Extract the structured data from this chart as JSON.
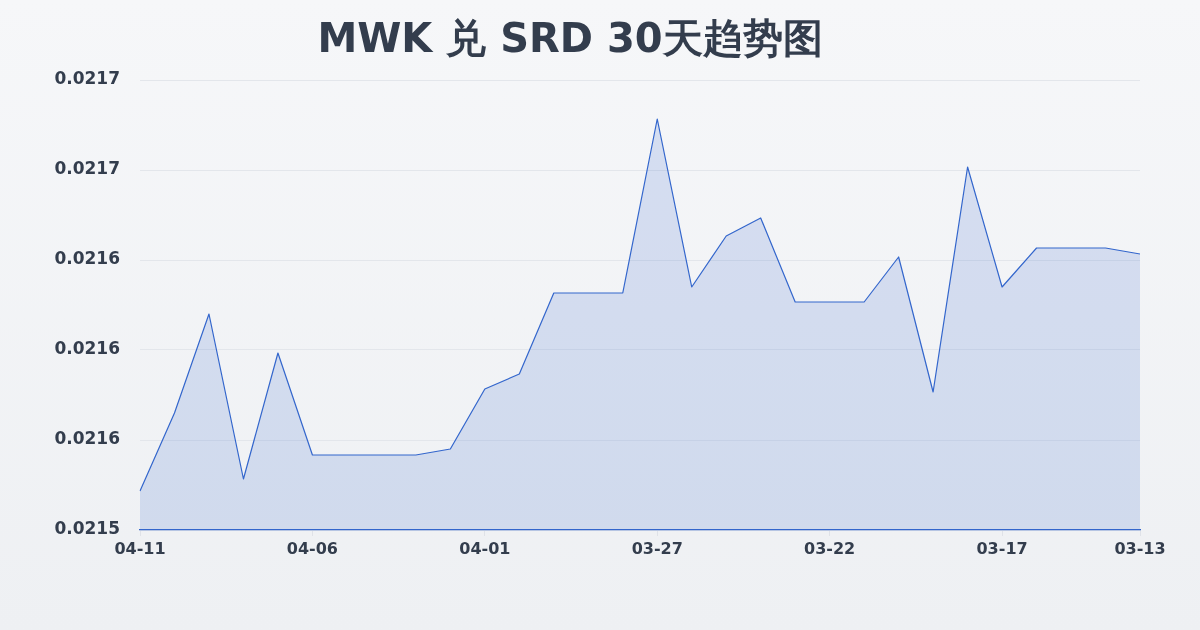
{
  "chart_data": {
    "type": "area",
    "title": "MWK 兑 SRD 30天趋势图",
    "categories": [
      "04-11",
      null,
      null,
      null,
      null,
      "04-06",
      null,
      null,
      null,
      null,
      "04-01",
      null,
      null,
      null,
      null,
      "03-27",
      null,
      null,
      null,
      null,
      "03-22",
      null,
      null,
      null,
      null,
      "03-17",
      null,
      null,
      null,
      "03-13"
    ],
    "values": [
      0.021553,
      0.021579,
      0.021612,
      0.021557,
      0.021599,
      0.021565,
      0.021565,
      0.021565,
      0.021565,
      0.021567,
      0.021587,
      0.021592,
      0.021619,
      0.021619,
      0.021619,
      0.021677,
      0.021621,
      0.021638,
      0.021644,
      0.021616,
      0.021616,
      0.021616,
      0.021631,
      0.021586,
      0.021661,
      0.021621,
      0.021634,
      0.021634,
      0.021634,
      0.021632
    ],
    "color": "#3366cc",
    "ylim": [
      0.02154,
      0.02169
    ],
    "yticks": [
      {
        "value": 0.02154,
        "label": "0.0215"
      },
      {
        "value": 0.02157,
        "label": "0.0216"
      },
      {
        "value": 0.0216,
        "label": "0.0216"
      },
      {
        "value": 0.02163,
        "label": "0.0216"
      },
      {
        "value": 0.02166,
        "label": "0.0217"
      },
      {
        "value": 0.02169,
        "label": "0.0217"
      }
    ],
    "grid": "y",
    "marker": "none"
  }
}
